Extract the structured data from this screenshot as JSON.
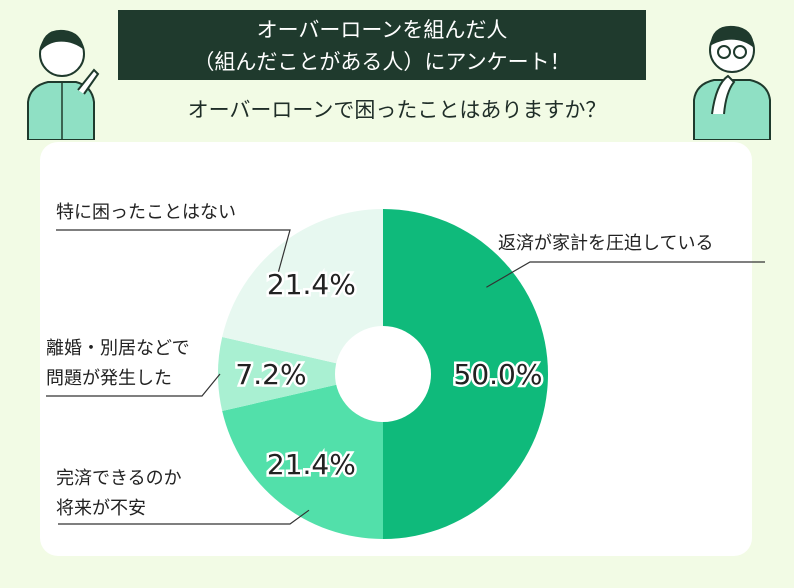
{
  "header": {
    "title_line1": "オーバーローンを組んだ人",
    "title_line2": "（組んだことがある人）にアンケート！",
    "question": "オーバーローンで困ったことはありますか？"
  },
  "colors": {
    "background": "#f2fbe5",
    "banner": "#1f3a2d",
    "panel": "#ffffff"
  },
  "chart_data": {
    "type": "pie",
    "donut": true,
    "slices": [
      {
        "label": "返済が家計を圧迫している",
        "value": 50.0,
        "value_label": "50.0%",
        "color": "#0fba7b"
      },
      {
        "label": "完済できるのか将来が不安",
        "value": 21.4,
        "value_label": "21.4%",
        "color": "#52e0aa"
      },
      {
        "label": "離婚・別居などで問題が発生した",
        "value": 7.2,
        "value_label": "7.2%",
        "color": "#a9f0d2"
      },
      {
        "label": "特に困ったことはない",
        "value": 21.4,
        "value_label": "21.4%",
        "color": "#e7f8f0"
      }
    ]
  },
  "labels": {
    "slice0": [
      "返済が家計を圧迫している"
    ],
    "slice1": [
      "完済できるのか",
      "将来が不安"
    ],
    "slice2": [
      "離婚・別居などで",
      "問題が発生した"
    ],
    "slice3": [
      "特に困ったことはない"
    ]
  }
}
